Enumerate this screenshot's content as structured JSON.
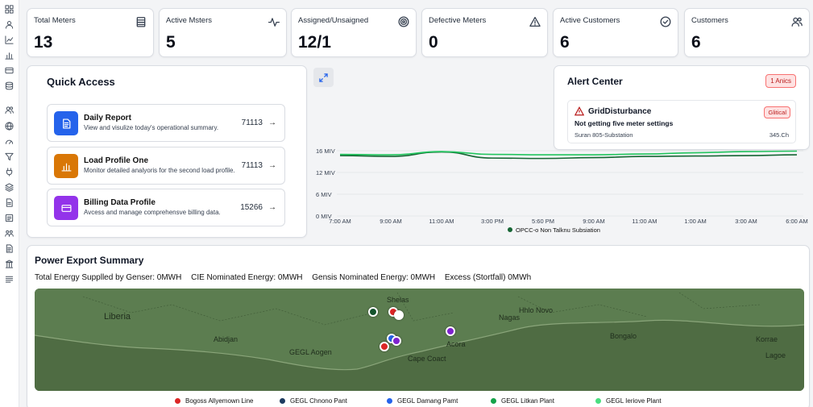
{
  "sidebar": {
    "icons": [
      "grid-icon",
      "user-icon",
      "chart-line-icon",
      "bar-chart-icon",
      "card-icon",
      "database-icon",
      "users-icon",
      "globe-icon",
      "gauge-icon",
      "filter-icon",
      "plug-icon",
      "layers-icon",
      "file-icon",
      "list-icon",
      "group-icon",
      "document-icon",
      "columns-icon",
      "menu-icon"
    ]
  },
  "stats": [
    {
      "label": "Total Meters",
      "value": "13",
      "icon": "building-icon"
    },
    {
      "label": "Active Msters",
      "value": "5",
      "icon": "activity-icon"
    },
    {
      "label": "Assigned/Unsaigned",
      "value": "12/1",
      "icon": "target-icon"
    },
    {
      "label": "Defective Meters",
      "value": "0",
      "icon": "warning-icon"
    },
    {
      "label": "Active Customers",
      "value": "6",
      "icon": "check-circle-icon"
    },
    {
      "label": "Customers",
      "value": "6",
      "icon": "users-icon"
    }
  ],
  "quick_access": {
    "title": "Quick Access",
    "items": [
      {
        "name": "Daily Report",
        "desc": "View and visulize today's operational summary.",
        "num": "71113",
        "color": "#2563eb",
        "icon": "document-icon"
      },
      {
        "name": "Load Profile One",
        "desc": "Monitor detailed analyoris for the second load profile.",
        "num": "71113",
        "color": "#d97706",
        "icon": "bar-chart-icon"
      },
      {
        "name": "Billing Data Profile",
        "desc": "Avcess and manage comprehensve billing data.",
        "num": "15266",
        "color": "#9333ea",
        "icon": "card-icon"
      }
    ],
    "arrow": "→"
  },
  "alert_center": {
    "title": "Alert Center",
    "badge": "1 Anics",
    "alert": {
      "title": "GridDisturbance",
      "badge": "Glitical",
      "message": "Not getting five meter settings",
      "location": "Suran 805-Substation",
      "value": "345.Ch"
    }
  },
  "chart_data": {
    "type": "line",
    "categories": [
      "7:00 AM",
      "9:00 AM",
      "11:00 AM",
      "3:00 PM",
      "5:60 PM",
      "9:00 AM",
      "11:00 AM",
      "1:00 AM",
      "3:00 AM",
      "6:00 AM"
    ],
    "y_ticks": [
      "16 MIV",
      "12 MIV",
      "6 MIV",
      "0 MIV"
    ],
    "ylim": [
      0,
      16
    ],
    "grid": true,
    "legend_position": "bottom",
    "series": [
      {
        "name": "OPCC-o Non Talknu Subsiation",
        "color": "#166534",
        "values": [
          14.8,
          14.6,
          15.7,
          14.2,
          14.1,
          14.3,
          14.6,
          14.7,
          14.8,
          15.0
        ]
      },
      {
        "name": "",
        "color": "#22c55e",
        "values": [
          15.1,
          15.0,
          15.8,
          15.1,
          15.0,
          15.0,
          15.2,
          15.5,
          15.8,
          15.9
        ]
      }
    ]
  },
  "power_export": {
    "title": "Power Export Summary",
    "stats": [
      "Total Energy Supplled by Genser: 0MWH",
      "CIE Nominated Energy: 0MWH",
      "Gensis Nominated Energy: 0MWH",
      "Excess (Stortfall) 0MWh"
    ],
    "map_labels": [
      "Liberia",
      "Shelas",
      "Nagas",
      "Hhlo Novo",
      "Abidjan",
      "GEGL Aogen",
      "Cape Coact",
      "Acora",
      "Bongalo",
      "Korrae",
      "Lagoe"
    ],
    "legend": [
      {
        "name": "Bogoss Allyemown Line",
        "color": "#dc2626"
      },
      {
        "name": "GEGL Chnono Pant",
        "color": "#1e3a5f"
      },
      {
        "name": "GEGL Damang Pamt",
        "color": "#2563eb"
      },
      {
        "name": "GEGL Litkan Plant",
        "color": "#16a34a"
      },
      {
        "name": "GEGL Ieriove Plant",
        "color": "#4ade80"
      }
    ]
  }
}
